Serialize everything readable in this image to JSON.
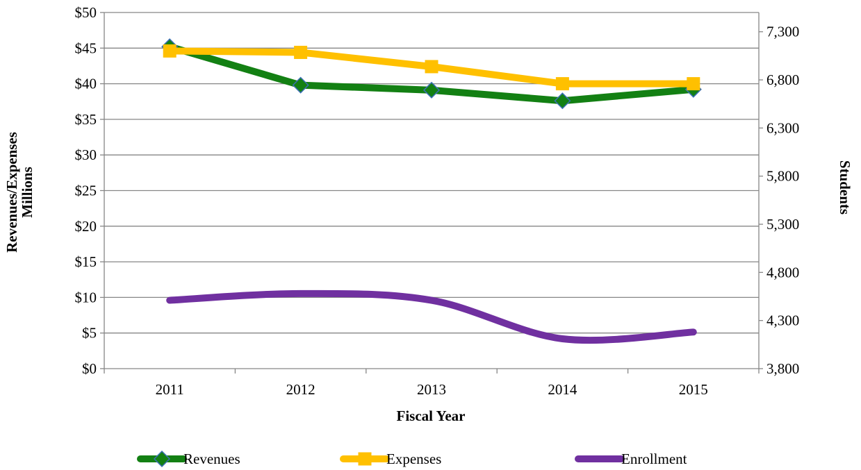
{
  "chart_data": {
    "type": "line",
    "x_title": "Fiscal Year",
    "y_left_title_line1": "Revenues/Expenses",
    "y_left_title_line2": "Millions",
    "y_right_title": "Students",
    "categories": [
      "2011",
      "2012",
      "2013",
      "2014",
      "2015"
    ],
    "y_left_ticks": [
      "$0",
      "$5",
      "$10",
      "$15",
      "$20",
      "$25",
      "$30",
      "$35",
      "$40",
      "$45",
      "$50"
    ],
    "y_right_ticks": [
      "3,800",
      "4,300",
      "4,800",
      "5,300",
      "5,800",
      "6,300",
      "6,800",
      "7,300"
    ],
    "y_left_range": [
      0,
      50
    ],
    "y_right_range": [
      3800,
      7500
    ],
    "grid": true,
    "legend_position": "bottom",
    "series": [
      {
        "name": "Revenues",
        "axis": "left",
        "marker": "diamond",
        "color": "#138013",
        "marker_fill": "#138013",
        "marker_stroke": "#3b6fb5",
        "smooth": false,
        "values": [
          45.2,
          39.8,
          39.1,
          37.6,
          39.2
        ]
      },
      {
        "name": "Expenses",
        "axis": "left",
        "marker": "square",
        "color": "#ffc000",
        "marker_fill": "#ffc000",
        "marker_stroke": "#ffc000",
        "smooth": false,
        "values": [
          44.6,
          44.4,
          42.4,
          40.0,
          40.0
        ]
      },
      {
        "name": "Enrollment",
        "axis": "right",
        "marker": "none",
        "color": "#7030a0",
        "smooth": true,
        "values": [
          4510,
          4580,
          4510,
          4110,
          4180
        ]
      }
    ]
  }
}
